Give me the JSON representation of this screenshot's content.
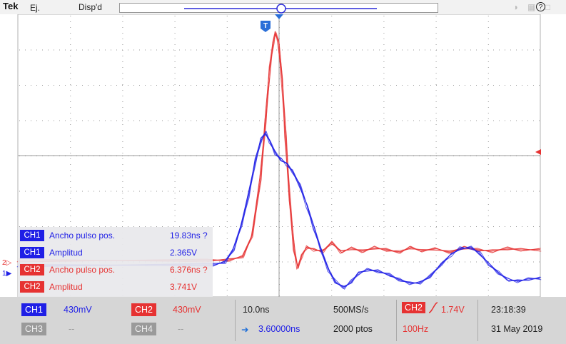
{
  "header": {
    "brand": "Tek",
    "mode": "Ej.",
    "state": "Disp'd"
  },
  "help_label": "?",
  "trigger_marker": "T",
  "channel_markers": {
    "ch2": "2",
    "ch1": "1"
  },
  "measurements": [
    {
      "channel": "CH1",
      "name": "Ancho pulso pos.",
      "value": "19.83ns ?",
      "color": "#1f1fe6"
    },
    {
      "channel": "CH1",
      "name": "Amplitud",
      "value": "2.365V",
      "color": "#1f1fe6"
    },
    {
      "channel": "CH2",
      "name": "Ancho pulso pos.",
      "value": "6.376ns ?",
      "color": "#e63232"
    },
    {
      "channel": "CH2",
      "name": "Amplitud",
      "value": "3.741V",
      "color": "#e63232"
    }
  ],
  "channels": {
    "ch1": {
      "label": "CH1",
      "scale": "430mV"
    },
    "ch2": {
      "label": "CH2",
      "scale": "430mV"
    },
    "ch3": {
      "label": "CH3",
      "scale": "--"
    },
    "ch4": {
      "label": "CH4",
      "scale": "--"
    }
  },
  "horizontal": {
    "scale": "10.0ns",
    "position": "3.60000ns"
  },
  "acquisition": {
    "sample_rate": "500MS/s",
    "points": "2000 ptos"
  },
  "trigger": {
    "source": "CH2",
    "level": "1.74V",
    "frequency": "100Hz"
  },
  "datetime": {
    "time": "23:18:39",
    "date": "31 May 2019"
  },
  "colors": {
    "ch1": "#1f1fe6",
    "ch2": "#e63232"
  }
}
